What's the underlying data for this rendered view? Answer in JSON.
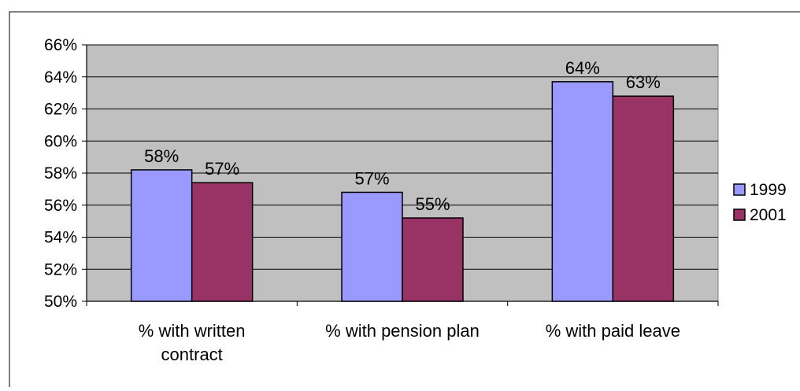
{
  "chart_data": {
    "type": "bar",
    "categories": [
      [
        "% with written",
        "contract"
      ],
      [
        "% with pension plan"
      ],
      [
        "% with paid leave"
      ]
    ],
    "series": [
      {
        "name": "1999",
        "values": [
          58.2,
          56.8,
          63.7
        ],
        "labels": [
          "58%",
          "57%",
          "64%"
        ],
        "color": "#9999ff"
      },
      {
        "name": "2001",
        "values": [
          57.4,
          55.2,
          62.8
        ],
        "labels": [
          "57%",
          "55%",
          "63%"
        ],
        "color": "#993366"
      }
    ],
    "ylim": [
      50,
      66
    ],
    "yticks": [
      50,
      52,
      54,
      56,
      58,
      60,
      62,
      64,
      66
    ],
    "ytick_labels": [
      "50%",
      "52%",
      "54%",
      "56%",
      "58%",
      "60%",
      "62%",
      "64%",
      "66%"
    ],
    "title": "",
    "xlabel": "",
    "ylabel": "",
    "grid": true,
    "plot_background": "#c0c0c0",
    "legend_position": "right"
  }
}
